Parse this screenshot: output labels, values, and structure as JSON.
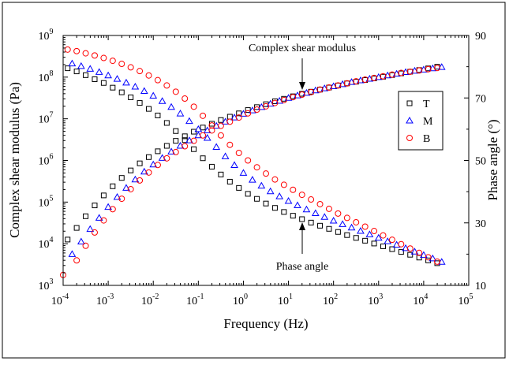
{
  "chart_data": {
    "type": "scatter",
    "xlabel": "Frequency (Hz)",
    "ylabel": "Complex shear modulus (Pa)",
    "y2label": "Phase angle (°)",
    "x_scale": "log",
    "y_scale": "log",
    "xlim": [
      0.0001,
      100000
    ],
    "ylim": [
      1000,
      1000000000
    ],
    "y2lim": [
      10,
      90
    ],
    "x_ticks": [
      {
        "base": "10",
        "exp": "-4"
      },
      {
        "base": "10",
        "exp": "-3"
      },
      {
        "base": "10",
        "exp": "-2"
      },
      {
        "base": "10",
        "exp": "-1"
      },
      {
        "base": "10",
        "exp": "0"
      },
      {
        "base": "10",
        "exp": "1"
      },
      {
        "base": "10",
        "exp": "2"
      },
      {
        "base": "10",
        "exp": "3"
      },
      {
        "base": "10",
        "exp": "4"
      },
      {
        "base": "10",
        "exp": "5"
      }
    ],
    "y_ticks": [
      {
        "base": "10",
        "exp": "3"
      },
      {
        "base": "10",
        "exp": "4"
      },
      {
        "base": "10",
        "exp": "5"
      },
      {
        "base": "10",
        "exp": "6"
      },
      {
        "base": "10",
        "exp": "7"
      },
      {
        "base": "10",
        "exp": "8"
      },
      {
        "base": "10",
        "exp": "9"
      }
    ],
    "y2_ticks": [
      "10",
      "30",
      "50",
      "70",
      "90"
    ],
    "annotations": {
      "modulus": "Complex shear modulus",
      "phase": "Phase angle"
    },
    "legend_position": "right",
    "grid": false,
    "series": [
      {
        "name": "T",
        "marker": "square",
        "color": "#000000",
        "modulus": {
          "log_x": [
            -3.9,
            -3.7,
            -3.5,
            -3.3,
            -3.1,
            -2.9,
            -2.7,
            -2.5,
            -2.3,
            -2.1,
            -1.9,
            -1.7,
            -1.5,
            -1.3,
            -1.1,
            -0.9,
            -0.7,
            -0.5,
            -0.3,
            -0.1,
            0.1,
            0.3,
            0.5,
            0.7,
            0.9,
            1.1,
            1.3,
            1.5,
            1.7,
            1.9,
            2.1,
            2.3,
            2.5,
            2.7,
            2.9,
            3.1,
            3.3,
            3.5,
            3.7,
            3.9,
            4.1,
            4.3
          ],
          "log_y": [
            4.1,
            4.38,
            4.66,
            4.92,
            5.16,
            5.38,
            5.58,
            5.76,
            5.93,
            6.08,
            6.22,
            6.35,
            6.47,
            6.58,
            6.69,
            6.79,
            6.88,
            6.97,
            7.05,
            7.13,
            7.21,
            7.28,
            7.35,
            7.42,
            7.48,
            7.54,
            7.6,
            7.65,
            7.7,
            7.75,
            7.8,
            7.85,
            7.89,
            7.93,
            7.97,
            8.01,
            8.05,
            8.09,
            8.13,
            8.17,
            8.21,
            8.25
          ]
        },
        "phase": {
          "log_x": [
            -3.9,
            -3.7,
            -3.5,
            -3.3,
            -3.1,
            -2.9,
            -2.7,
            -2.5,
            -2.3,
            -2.1,
            -1.9,
            -1.7,
            -1.5,
            -1.3,
            -1.1,
            -0.9,
            -0.7,
            -0.5,
            -0.3,
            -0.1,
            0.1,
            0.3,
            0.5,
            0.7,
            0.9,
            1.1,
            1.3,
            1.5,
            1.7,
            1.9,
            2.1,
            2.3,
            2.5,
            2.7,
            2.9,
            3.1,
            3.3,
            3.5,
            3.7,
            3.9,
            4.1,
            4.3
          ],
          "deg": [
            79.5,
            78.5,
            77.3,
            76.0,
            74.8,
            73.3,
            71.8,
            70.2,
            68.4,
            66.5,
            64.4,
            62.0,
            59.4,
            56.5,
            53.6,
            50.7,
            48.0,
            45.5,
            43.2,
            41.2,
            39.3,
            37.7,
            36.2,
            34.8,
            33.5,
            32.3,
            31.2,
            30.1,
            29.1,
            28.1,
            27.1,
            26.1,
            25.2,
            24.3,
            23.4,
            22.5,
            21.6,
            20.7,
            19.8,
            18.9,
            18.0,
            17.1
          ]
        }
      },
      {
        "name": "M",
        "marker": "triangle",
        "color": "#0000ff",
        "modulus": {
          "log_x": [
            -3.8,
            -3.6,
            -3.4,
            -3.2,
            -3.0,
            -2.8,
            -2.6,
            -2.4,
            -2.2,
            -2.0,
            -1.8,
            -1.6,
            -1.4,
            -1.2,
            -1.0,
            -0.8,
            -0.6,
            -0.4,
            -0.2,
            0.0,
            0.2,
            0.4,
            0.6,
            0.8,
            1.0,
            1.2,
            1.4,
            1.6,
            1.8,
            2.0,
            2.2,
            2.4,
            2.6,
            2.8,
            3.0,
            3.2,
            3.4,
            3.6,
            3.8,
            4.0,
            4.2,
            4.4
          ],
          "log_y": [
            3.75,
            4.05,
            4.35,
            4.62,
            4.88,
            5.12,
            5.34,
            5.54,
            5.73,
            5.9,
            6.06,
            6.21,
            6.35,
            6.48,
            6.6,
            6.72,
            6.83,
            6.93,
            7.03,
            7.12,
            7.2,
            7.28,
            7.36,
            7.43,
            7.5,
            7.56,
            7.62,
            7.68,
            7.73,
            7.78,
            7.83,
            7.88,
            7.92,
            7.96,
            8.0,
            8.04,
            8.08,
            8.12,
            8.15,
            8.18,
            8.21,
            8.24
          ]
        },
        "phase": {
          "log_x": [
            -3.8,
            -3.6,
            -3.4,
            -3.2,
            -3.0,
            -2.8,
            -2.6,
            -2.4,
            -2.2,
            -2.0,
            -1.8,
            -1.6,
            -1.4,
            -1.2,
            -1.0,
            -0.8,
            -0.6,
            -0.4,
            -0.2,
            0.0,
            0.2,
            0.4,
            0.6,
            0.8,
            1.0,
            1.2,
            1.4,
            1.6,
            1.8,
            2.0,
            2.2,
            2.4,
            2.6,
            2.8,
            3.0,
            3.2,
            3.4,
            3.6,
            3.8,
            4.0,
            4.2,
            4.4
          ],
          "deg": [
            81.0,
            80.2,
            79.3,
            78.3,
            77.2,
            76.1,
            74.9,
            73.6,
            72.2,
            70.7,
            69.0,
            67.1,
            65.0,
            62.6,
            60.0,
            57.2,
            54.3,
            51.3,
            48.5,
            46.0,
            43.8,
            41.9,
            40.1,
            38.5,
            37.0,
            35.6,
            34.3,
            33.1,
            31.9,
            30.7,
            29.6,
            28.5,
            27.4,
            26.3,
            25.2,
            24.1,
            23.0,
            21.9,
            20.8,
            19.7,
            18.6,
            17.5
          ]
        }
      },
      {
        "name": "B",
        "marker": "circle",
        "color": "#ff0000",
        "modulus": {
          "log_x": [
            -4.0,
            -3.7,
            -3.5,
            -3.3,
            -3.1,
            -2.9,
            -2.7,
            -2.5,
            -2.3,
            -2.1,
            -1.9,
            -1.7,
            -1.5,
            -1.3,
            -1.1,
            -0.9,
            -0.7,
            -0.5,
            -0.3,
            -0.1,
            0.1,
            0.3,
            0.5,
            0.7,
            0.9,
            1.1,
            1.3,
            1.5,
            1.7,
            1.9,
            2.1,
            2.3,
            2.5,
            2.7,
            2.9,
            3.1,
            3.3,
            3.5,
            3.7,
            3.9,
            4.1,
            4.3
          ],
          "log_y": [
            3.25,
            3.6,
            3.95,
            4.27,
            4.56,
            4.83,
            5.08,
            5.31,
            5.52,
            5.71,
            5.89,
            6.05,
            6.2,
            6.34,
            6.47,
            6.6,
            6.72,
            6.83,
            6.93,
            7.03,
            7.13,
            7.22,
            7.3,
            7.38,
            7.45,
            7.52,
            7.58,
            7.64,
            7.7,
            7.75,
            7.8,
            7.85,
            7.9,
            7.94,
            7.98,
            8.02,
            8.06,
            8.1,
            8.13,
            8.16,
            8.19,
            8.22
          ]
        },
        "phase": {
          "log_x": [
            -3.9,
            -3.7,
            -3.5,
            -3.3,
            -3.1,
            -2.9,
            -2.7,
            -2.5,
            -2.3,
            -2.1,
            -1.9,
            -1.7,
            -1.5,
            -1.3,
            -1.1,
            -0.9,
            -0.7,
            -0.5,
            -0.3,
            -0.1,
            0.1,
            0.3,
            0.5,
            0.7,
            0.9,
            1.1,
            1.3,
            1.5,
            1.7,
            1.9,
            2.1,
            2.3,
            2.5,
            2.7,
            2.9,
            3.1,
            3.3,
            3.5,
            3.7,
            3.9,
            4.1,
            4.3
          ],
          "deg": [
            85.5,
            85.0,
            84.3,
            83.6,
            82.8,
            81.9,
            80.9,
            79.8,
            78.6,
            77.2,
            75.7,
            74.0,
            72.0,
            69.8,
            67.2,
            64.3,
            61.2,
            58.0,
            55.0,
            52.4,
            50.0,
            47.8,
            45.8,
            43.9,
            42.2,
            40.6,
            39.0,
            37.5,
            36.0,
            34.5,
            33.0,
            31.6,
            30.2,
            28.8,
            27.4,
            26.0,
            24.6,
            23.2,
            21.8,
            20.4,
            19.0,
            17.6
          ]
        }
      }
    ]
  }
}
